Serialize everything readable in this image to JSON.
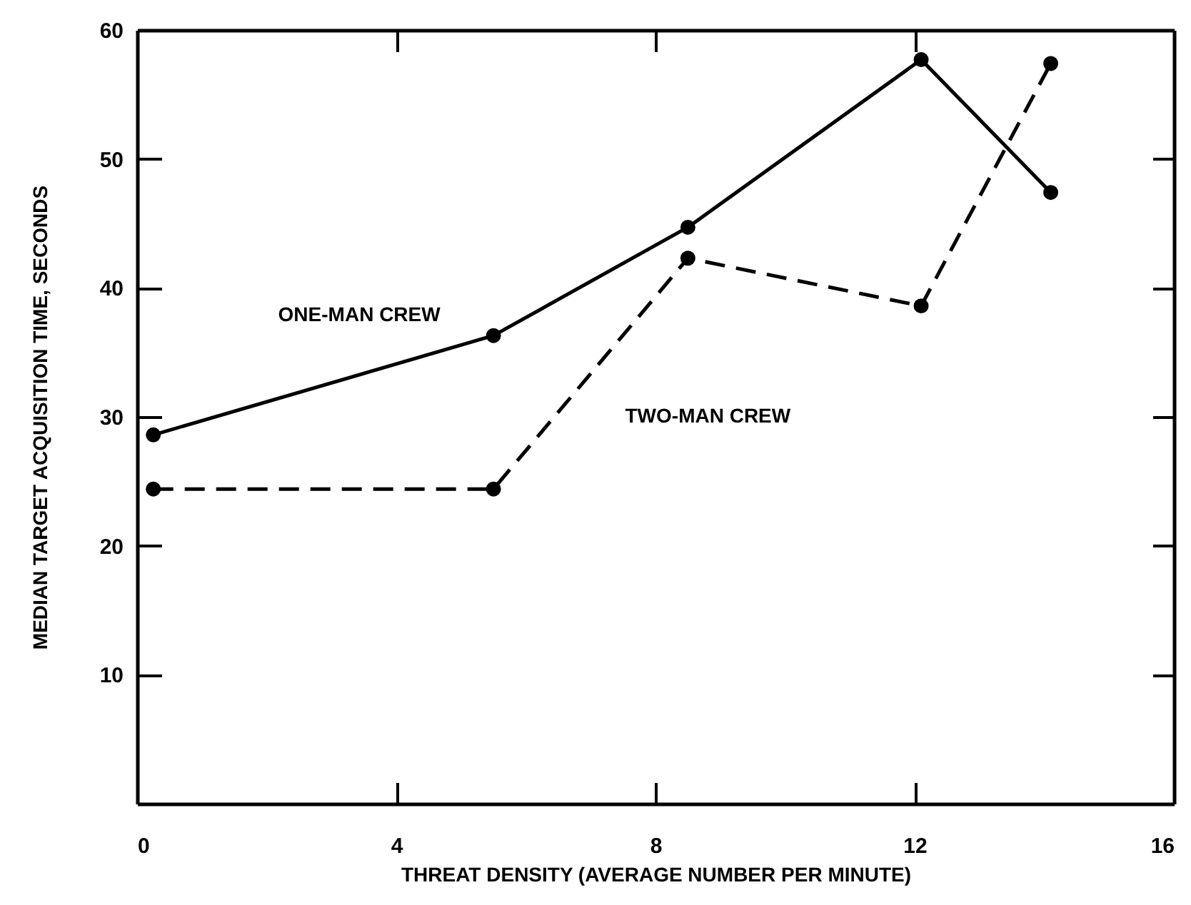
{
  "chart_data": {
    "type": "line",
    "xlabel": "THREAT DENSITY (AVERAGE NUMBER PER MINUTE)",
    "ylabel": "MEDIAN TARGET ACQUISITION TIME, SECONDS",
    "x": [
      0.25,
      5.5,
      8.5,
      12.1,
      14.1
    ],
    "series": [
      {
        "name": "ONE-MAN CREW",
        "color": "#000000",
        "line_style": "solid",
        "values": [
          28.6,
          36.3,
          44.7,
          57.7,
          47.4
        ]
      },
      {
        "name": "TWO-MAN CREW",
        "color": "#000000",
        "line_style": "dashed",
        "values": [
          24.4,
          24.4,
          42.3,
          38.6,
          57.4
        ]
      }
    ],
    "xlim": [
      0,
      16
    ],
    "xticks": [
      0,
      4,
      8,
      12,
      16
    ],
    "ylim": [
      0,
      60
    ],
    "yticks": [
      10,
      20,
      30,
      40,
      50,
      60
    ],
    "marker": "circle",
    "legend": false,
    "grid": false
  }
}
